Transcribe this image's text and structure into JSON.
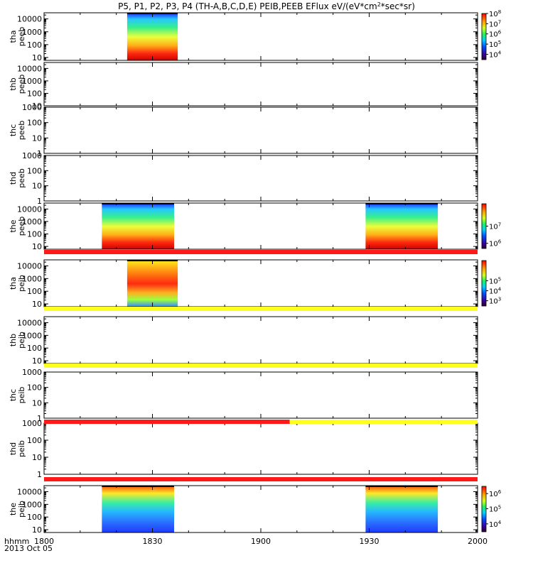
{
  "title": {
    "main": "P5, P1, P2, P3, P4 (TH-A,B,C,D,E) PEIB,PEEB EFlux eV/(eV*cm",
    "sup": "2",
    "tail": "*sec*sr)"
  },
  "footer": {
    "xlabel": "hhmm",
    "date": "2013 Oct 05"
  },
  "chart_data": {
    "type": "heatmap",
    "x_range": [
      "18:00",
      "20:00"
    ],
    "x_ticks": [
      {
        "value": "18:00",
        "label": "1800"
      },
      {
        "value": "18:30",
        "label": "1830"
      },
      {
        "value": "19:00",
        "label": "1900"
      },
      {
        "value": "19:30",
        "label": "1930"
      },
      {
        "value": "20:00",
        "label": "2000"
      }
    ],
    "y_scale": "log",
    "panels": [
      {
        "probe": "tha",
        "product": "peeb",
        "yticks": [
          {
            "v": 10,
            "label": "10"
          },
          {
            "v": 100,
            "label": "100"
          },
          {
            "v": 1000,
            "label": "1000"
          },
          {
            "v": 10000,
            "label": "10000"
          }
        ],
        "ylim": [
          6,
          30000
        ],
        "data_intervals": [
          [
            "18:23",
            "18:37"
          ]
        ],
        "colorbar": {
          "range": [
            3000,
            100000000
          ],
          "exponents": [
            4,
            5,
            6,
            7,
            8
          ]
        }
      },
      {
        "probe": "thb",
        "product": "peeb",
        "yticks": [
          {
            "v": 10,
            "label": "10"
          },
          {
            "v": 100,
            "label": "100"
          },
          {
            "v": 1000,
            "label": "1000"
          },
          {
            "v": 10000,
            "label": "10000"
          }
        ],
        "ylim": [
          10,
          30000
        ],
        "data_intervals": []
      },
      {
        "probe": "thc",
        "product": "peeb",
        "yticks": [
          {
            "v": 1,
            "label": "1"
          },
          {
            "v": 10,
            "label": "10"
          },
          {
            "v": 100,
            "label": "100"
          },
          {
            "v": 1000,
            "label": "1000"
          }
        ],
        "ylim": [
          1,
          1000
        ],
        "data_intervals": []
      },
      {
        "probe": "thd",
        "product": "peeb",
        "yticks": [
          {
            "v": 1,
            "label": "1"
          },
          {
            "v": 10,
            "label": "10"
          },
          {
            "v": 100,
            "label": "100"
          },
          {
            "v": 1000,
            "label": "1000"
          }
        ],
        "ylim": [
          1,
          1000
        ],
        "data_intervals": []
      },
      {
        "probe": "the",
        "product": "peeb",
        "yticks": [
          {
            "v": 10,
            "label": "10"
          },
          {
            "v": 100,
            "label": "100"
          },
          {
            "v": 1000,
            "label": "1000"
          },
          {
            "v": 10000,
            "label": "10000"
          }
        ],
        "ylim": [
          6,
          30000
        ],
        "data_intervals": [
          [
            "18:16",
            "18:36"
          ],
          [
            "19:29",
            "19:49"
          ]
        ],
        "colorbar": {
          "range": [
            500000,
            200000000
          ],
          "exponents": [
            6,
            7
          ]
        }
      },
      {
        "probe": "tha",
        "product": "peib",
        "yticks": [
          {
            "v": 10,
            "label": "10"
          },
          {
            "v": 100,
            "label": "100"
          },
          {
            "v": 1000,
            "label": "1000"
          },
          {
            "v": 10000,
            "label": "10000"
          }
        ],
        "ylim": [
          6,
          30000
        ],
        "data_intervals": [
          [
            "18:23",
            "18:37"
          ]
        ],
        "colorbar": {
          "range": [
            300,
            10000000
          ],
          "exponents": [
            3,
            4,
            5
          ]
        }
      },
      {
        "probe": "thb",
        "product": "peib",
        "yticks": [
          {
            "v": 10,
            "label": "10"
          },
          {
            "v": 100,
            "label": "100"
          },
          {
            "v": 1000,
            "label": "1000"
          },
          {
            "v": 10000,
            "label": "10000"
          }
        ],
        "ylim": [
          6,
          30000
        ],
        "data_intervals": []
      },
      {
        "probe": "thc",
        "product": "peib",
        "yticks": [
          {
            "v": 1,
            "label": "1"
          },
          {
            "v": 10,
            "label": "10"
          },
          {
            "v": 100,
            "label": "100"
          },
          {
            "v": 1000,
            "label": "1000"
          }
        ],
        "ylim": [
          1,
          1000
        ],
        "data_intervals": []
      },
      {
        "probe": "thd",
        "product": "peib",
        "yticks": [
          {
            "v": 1,
            "label": "1"
          },
          {
            "v": 10,
            "label": "10"
          },
          {
            "v": 100,
            "label": "100"
          },
          {
            "v": 1000,
            "label": "1000"
          }
        ],
        "ylim": [
          1,
          1000
        ],
        "data_intervals": []
      },
      {
        "probe": "the",
        "product": "peib",
        "yticks": [
          {
            "v": 10,
            "label": "10"
          },
          {
            "v": 100,
            "label": "100"
          },
          {
            "v": 1000,
            "label": "1000"
          },
          {
            "v": 10000,
            "label": "10000"
          }
        ],
        "ylim": [
          6,
          30000
        ],
        "data_intervals": [
          [
            "18:16",
            "18:36"
          ],
          [
            "19:29",
            "19:49"
          ]
        ],
        "colorbar": {
          "range": [
            3000,
            3000000
          ],
          "exponents": [
            4,
            5,
            6
          ]
        }
      }
    ],
    "status_bars": [
      {
        "after_panel": 4,
        "segments": [
          {
            "from": "18:00",
            "to": "20:00",
            "color": "#ff1a1a"
          }
        ]
      },
      {
        "after_panel": 5,
        "segments": [
          {
            "from": "18:00",
            "to": "20:00",
            "color": "#ffff22"
          }
        ]
      },
      {
        "after_panel": 6,
        "segments": [
          {
            "from": "18:00",
            "to": "20:00",
            "color": "#ffff22"
          }
        ]
      },
      {
        "after_panel": 7,
        "segments": [
          {
            "from": "18:00",
            "to": "19:08",
            "color": "#ff1a1a"
          },
          {
            "from": "19:08",
            "to": "20:00",
            "color": "#ffff22"
          }
        ]
      },
      {
        "after_panel": 8,
        "segments": [
          {
            "from": "18:00",
            "to": "20:00",
            "color": "#ff1a1a"
          }
        ]
      }
    ]
  }
}
